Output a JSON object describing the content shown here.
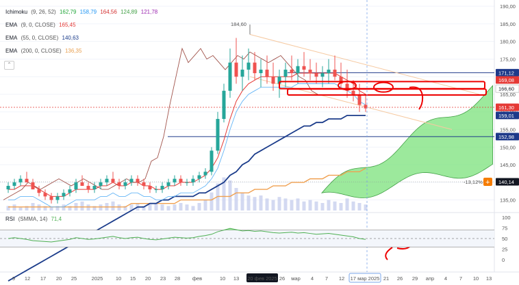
{
  "legends": {
    "ichimoku": {
      "name": "Ichimoku",
      "params": "(9, 26, 52)",
      "v1": "162,79",
      "v2": "158,79",
      "v3": "164,56",
      "v4": "124,89",
      "v5": "121,78",
      "c1": "#22a63a",
      "c2": "#2196f3",
      "c3": "#d32f2f",
      "c4": "#43a047",
      "c5": "#9c27b0"
    },
    "ema9": {
      "name": "EMA",
      "params": "(9, 0, CLOSE)",
      "value": "165,45",
      "color": "#e53935"
    },
    "ema55": {
      "name": "EMA",
      "params": "(55, 0, CLOSE)",
      "value": "140,63",
      "color": "#1a3b8a"
    },
    "ema200": {
      "name": "EMA",
      "params": "(200, 0, CLOSE)",
      "value": "136,35",
      "color": "#f0a050"
    }
  },
  "rsi_legend": {
    "name": "RSI",
    "params": "(SMMA, 14)",
    "value": "71,4",
    "color": "#4caf50"
  },
  "y_ticks": [
    "190,00",
    "185,00",
    "180,00",
    "175,00",
    "170,00",
    "165,00",
    "160,00",
    "155,00",
    "150,00",
    "145,00",
    "140,00",
    "135,00"
  ],
  "rsi_ticks": [
    "100",
    "75",
    "50",
    "25",
    "0"
  ],
  "x_ticks": [
    "9",
    "12",
    "17",
    "20",
    "25",
    "2025",
    "10",
    "15",
    "20",
    "23",
    "28",
    "фев",
    "10",
    "13",
    "26",
    "мар",
    "4",
    "7",
    "12",
    "17",
    "21",
    "26",
    "29",
    "апр",
    "4",
    "7",
    "10",
    "13"
  ],
  "crosshair": {
    "date": "20 фев 2025",
    "date2": "17 мар 2025"
  },
  "price_labels": [
    {
      "text": "171,12",
      "bg": "#1e3a8a",
      "fg": "#ffffff"
    },
    {
      "text": "169,08",
      "bg": "#e53935",
      "fg": "#ffffff"
    },
    {
      "text": "166,60",
      "bg": "#ffffff",
      "fg": "#131722"
    },
    {
      "text": "161,30",
      "bg": "#e53935",
      "fg": "#ffffff"
    },
    {
      "text": "159,01",
      "bg": "#1e3a8a",
      "fg": "#ffffff"
    },
    {
      "text": "152,98",
      "bg": "#1e3a8a",
      "fg": "#ffffff"
    },
    {
      "text": "140,14",
      "bg": "#131722",
      "fg": "#ffffff"
    }
  ],
  "annotations": {
    "high": "184,60",
    "pct": "-13,12%",
    "plus": "+"
  },
  "chart_data": {
    "type": "candlestick",
    "ylim": [
      132,
      191
    ],
    "rsi_ylim": [
      0,
      100
    ],
    "candles": [
      [
        138,
        140,
        137,
        139
      ],
      [
        139,
        141,
        138,
        140
      ],
      [
        140,
        142,
        139,
        141
      ],
      [
        141,
        143,
        140,
        140
      ],
      [
        140,
        141,
        138,
        138
      ],
      [
        138,
        139,
        136,
        137
      ],
      [
        137,
        138,
        135,
        136
      ],
      [
        136,
        137,
        134,
        135
      ],
      [
        135,
        137,
        134,
        136
      ],
      [
        136,
        138,
        135,
        137
      ],
      [
        137,
        139,
        136,
        138
      ],
      [
        138,
        141,
        137,
        140
      ],
      [
        140,
        142,
        139,
        139
      ],
      [
        139,
        140,
        137,
        138
      ],
      [
        138,
        140,
        137,
        139
      ],
      [
        139,
        141,
        138,
        140
      ],
      [
        140,
        142,
        139,
        141
      ],
      [
        141,
        143,
        140,
        140
      ],
      [
        140,
        141,
        138,
        139
      ],
      [
        139,
        141,
        138,
        140
      ],
      [
        140,
        142,
        139,
        141
      ],
      [
        141,
        142,
        139,
        140
      ],
      [
        140,
        141,
        138,
        139
      ],
      [
        139,
        140,
        137,
        138
      ],
      [
        138,
        139,
        137,
        138
      ],
      [
        138,
        140,
        137,
        139
      ],
      [
        139,
        141,
        138,
        140
      ],
      [
        140,
        142,
        139,
        141
      ],
      [
        141,
        142,
        139,
        140
      ],
      [
        140,
        141,
        139,
        140
      ],
      [
        140,
        142,
        139,
        141
      ],
      [
        141,
        143,
        140,
        142
      ],
      [
        142,
        144,
        141,
        143
      ],
      [
        143,
        150,
        142,
        149
      ],
      [
        149,
        160,
        148,
        158
      ],
      [
        158,
        168,
        157,
        166
      ],
      [
        166,
        178,
        164,
        174
      ],
      [
        174,
        181,
        168,
        170
      ],
      [
        170,
        176,
        166,
        172
      ],
      [
        172,
        178,
        169,
        174
      ],
      [
        174,
        177,
        169,
        171
      ],
      [
        171,
        175,
        167,
        172
      ],
      [
        172,
        176,
        168,
        170
      ],
      [
        170,
        174,
        166,
        168
      ],
      [
        168,
        172,
        164,
        170
      ],
      [
        170,
        174,
        167,
        172
      ],
      [
        172,
        176,
        169,
        171
      ],
      [
        171,
        175,
        168,
        173
      ],
      [
        173,
        177,
        170,
        172
      ],
      [
        172,
        175,
        169,
        171
      ],
      [
        171,
        174,
        168,
        170
      ],
      [
        170,
        173,
        167,
        171
      ],
      [
        171,
        175,
        168,
        172
      ],
      [
        172,
        176,
        169,
        170
      ],
      [
        170,
        174,
        167,
        168
      ],
      [
        168,
        172,
        164,
        166
      ],
      [
        166,
        169,
        163,
        165
      ],
      [
        165,
        168,
        160,
        162
      ],
      [
        162,
        165,
        160,
        161
      ]
    ],
    "ema9": [
      138,
      138,
      139,
      139,
      139,
      138,
      137,
      136,
      136,
      136,
      137,
      138,
      138,
      138,
      138,
      139,
      139,
      140,
      139,
      139,
      140,
      140,
      139,
      139,
      138,
      138,
      139,
      139,
      140,
      140,
      140,
      141,
      142,
      144,
      147,
      152,
      158,
      163,
      166,
      168,
      169,
      170,
      170,
      170,
      170,
      170,
      170,
      171,
      171,
      171,
      171,
      171,
      171,
      171,
      170,
      169,
      168,
      166,
      165
    ],
    "ema55": [
      112,
      113,
      114,
      115,
      116,
      117,
      118,
      119,
      120,
      121,
      122,
      123,
      124,
      125,
      126,
      127,
      128,
      129,
      130,
      131,
      132,
      133,
      133,
      134,
      134,
      135,
      135,
      136,
      136,
      136,
      136,
      137,
      137,
      138,
      139,
      140,
      142,
      143,
      145,
      146,
      148,
      149,
      150,
      151,
      152,
      153,
      154,
      155,
      156,
      156,
      157,
      157,
      158,
      158,
      158,
      159,
      159,
      159,
      159
    ],
    "ema200": [
      133,
      133,
      133,
      133,
      133,
      133,
      133,
      133,
      133,
      133,
      133,
      133,
      133,
      133,
      133,
      133,
      133,
      133,
      133,
      133,
      134,
      134,
      134,
      134,
      134,
      134,
      134,
      134,
      135,
      135,
      135,
      135,
      135,
      135,
      136,
      136,
      136,
      137,
      137,
      137,
      138,
      138,
      138,
      139,
      139,
      139,
      140,
      140,
      140,
      141,
      141,
      141,
      142,
      142,
      142,
      143,
      143,
      143,
      144
    ],
    "rsi": [
      50,
      52,
      50,
      48,
      45,
      44,
      43,
      42,
      44,
      46,
      48,
      52,
      50,
      48,
      49,
      51,
      53,
      55,
      52,
      50,
      52,
      53,
      50,
      48,
      47,
      49,
      51,
      53,
      52,
      51,
      52,
      55,
      57,
      60,
      66,
      70,
      74,
      71,
      68,
      69,
      67,
      68,
      66,
      64,
      63,
      64,
      65,
      63,
      64,
      62,
      60,
      61,
      62,
      60,
      58,
      56,
      54,
      50,
      48
    ],
    "volume": [
      3,
      4,
      2,
      3,
      5,
      4,
      3,
      2,
      3,
      4,
      3,
      5,
      6,
      4,
      3,
      4,
      5,
      6,
      4,
      3,
      4,
      5,
      3,
      4,
      5,
      4,
      3,
      4,
      5,
      4,
      3,
      5,
      7,
      12,
      18,
      22,
      20,
      15,
      12,
      10,
      9,
      10,
      8,
      7,
      9,
      8,
      7,
      8,
      6,
      7,
      6,
      5,
      7,
      6,
      5,
      8,
      6,
      5,
      4
    ],
    "rsi_levels": [
      70,
      50,
      30
    ]
  }
}
